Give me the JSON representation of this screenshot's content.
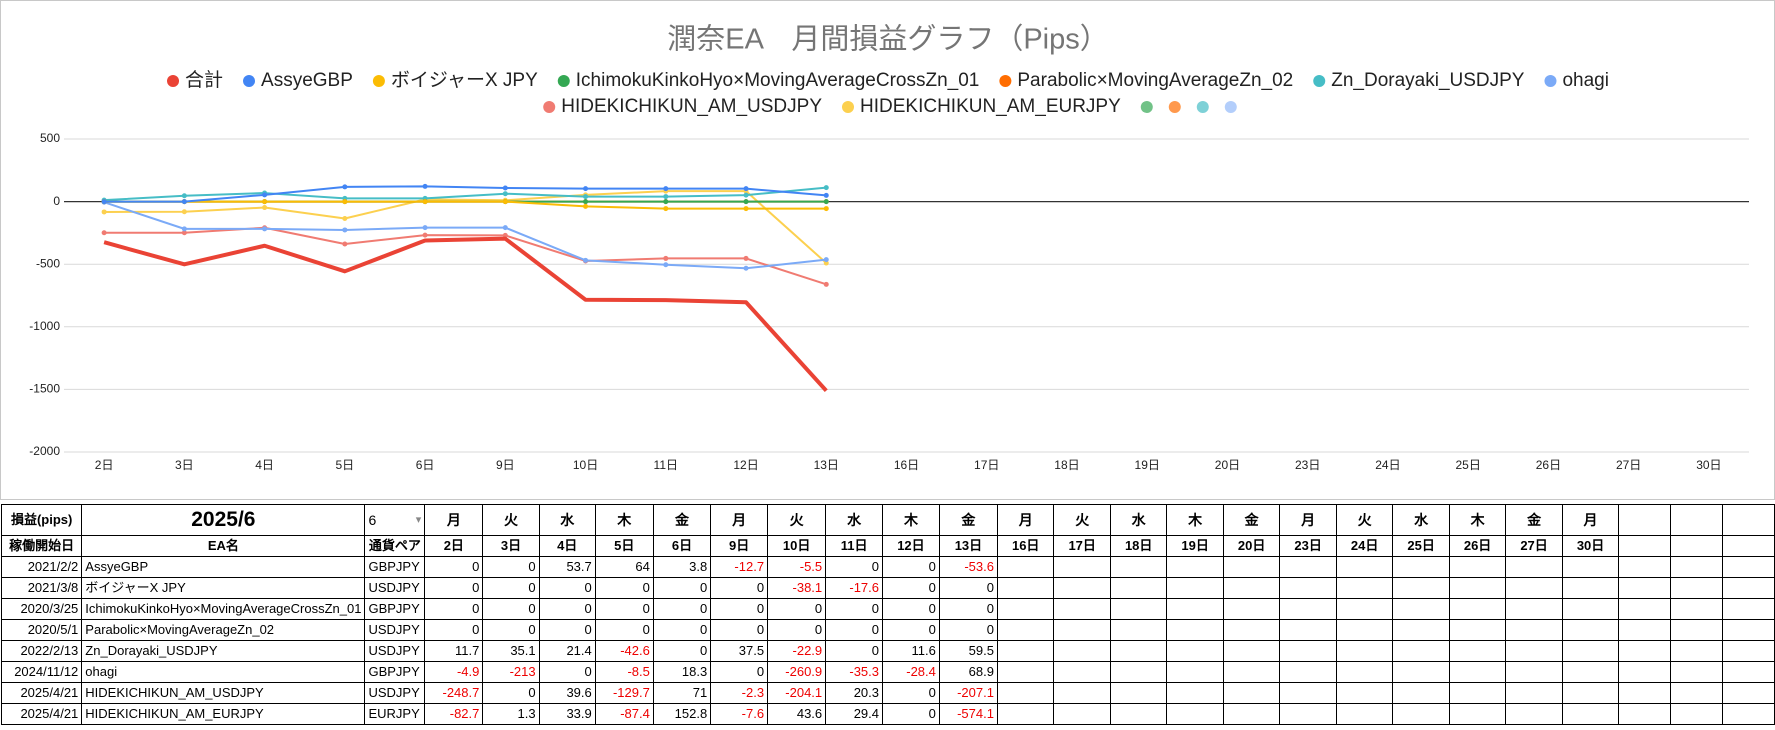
{
  "chart_data": {
    "type": "line",
    "title": "潤奈EA　月間損益グラフ（Pips）",
    "categories": [
      "2日",
      "3日",
      "4日",
      "5日",
      "6日",
      "9日",
      "10日",
      "11日",
      "12日",
      "13日",
      "16日",
      "17日",
      "18日",
      "19日",
      "20日",
      "23日",
      "24日",
      "25日",
      "26日",
      "27日",
      "30日"
    ],
    "ylim": [
      -2000,
      500
    ],
    "yticks": [
      500,
      0,
      -500,
      -1000,
      -1500,
      -2000
    ],
    "grid": true,
    "series": [
      {
        "name": "合計",
        "color": "#ea4335",
        "values": [
          -324.6,
          -501.2,
          -352.6,
          -556.8,
          -310.9,
          -296,
          -783.9,
          -787.1,
          -803.9,
          -1510.3,
          null,
          null,
          null,
          null,
          null,
          null,
          null,
          null,
          null,
          null,
          null
        ]
      },
      {
        "name": "AssyeGBP",
        "color": "#4285f4",
        "values": [
          0,
          0,
          53.7,
          117.7,
          121.5,
          108.8,
          103.3,
          103.3,
          103.3,
          49.7,
          null,
          null,
          null,
          null,
          null,
          null,
          null,
          null,
          null,
          null,
          null
        ]
      },
      {
        "name": "ボイジャーX JPY",
        "color": "#fbbc04",
        "values": [
          0,
          0,
          0,
          0,
          0,
          0,
          -38.1,
          -55.7,
          -55.7,
          -55.7,
          null,
          null,
          null,
          null,
          null,
          null,
          null,
          null,
          null,
          null,
          null
        ]
      },
      {
        "name": "IchimokuKinkoHyo×MovingAverageCrossZn_01",
        "color": "#34a853",
        "values": [
          0,
          0,
          0,
          0,
          0,
          0,
          0,
          0,
          0,
          0,
          null,
          null,
          null,
          null,
          null,
          null,
          null,
          null,
          null,
          null,
          null
        ]
      },
      {
        "name": "Parabolic×MovingAverageZn_02",
        "color": "#ff6d01",
        "values": [
          0,
          0,
          0,
          0,
          0,
          0,
          0,
          0,
          0,
          0,
          null,
          null,
          null,
          null,
          null,
          null,
          null,
          null,
          null,
          null,
          null
        ]
      },
      {
        "name": "Zn_Dorayaki_USDJPY",
        "color": "#46bdc6",
        "values": [
          11.7,
          46.8,
          68.2,
          25.6,
          25.6,
          63.1,
          40.2,
          40.2,
          51.8,
          111.3,
          null,
          null,
          null,
          null,
          null,
          null,
          null,
          null,
          null,
          null,
          null
        ]
      },
      {
        "name": "ohagi",
        "color": "#7baaf7",
        "values": [
          -4.9,
          -217.9,
          -217.9,
          -226.4,
          -208.1,
          -208.1,
          -469,
          -504.3,
          -532.7,
          -463.8,
          null,
          null,
          null,
          null,
          null,
          null,
          null,
          null,
          null,
          null,
          null
        ]
      },
      {
        "name": "HIDEKICHIKUN_AM_USDJPY",
        "color": "#f07b72",
        "values": [
          -248.7,
          -248.7,
          -209.1,
          -338.8,
          -267.8,
          -270.1,
          -474.2,
          -453.9,
          -453.9,
          -661,
          null,
          null,
          null,
          null,
          null,
          null,
          null,
          null,
          null,
          null,
          null
        ]
      },
      {
        "name": "HIDEKICHIKUN_AM_EURJPY",
        "color": "#fcd04f",
        "values": [
          -82.7,
          -81.4,
          -47.5,
          -134.9,
          17.9,
          10.3,
          53.9,
          83.3,
          83.3,
          -490.8,
          null,
          null,
          null,
          null,
          null,
          null,
          null,
          null,
          null,
          null,
          null
        ]
      }
    ]
  },
  "table": {
    "corner": "損益(pips)",
    "month": "2025/6",
    "month_select": "6",
    "weekdays": [
      "月",
      "火",
      "水",
      "木",
      "金",
      "月",
      "火",
      "水",
      "木",
      "金",
      "月",
      "火",
      "水",
      "木",
      "金",
      "月",
      "火",
      "水",
      "木",
      "金",
      "月"
    ],
    "header": [
      "稼働開始日",
      "EA名",
      "通貨ペア"
    ],
    "days": [
      "2日",
      "3日",
      "4日",
      "5日",
      "6日",
      "9日",
      "10日",
      "11日",
      "12日",
      "13日",
      "16日",
      "17日",
      "18日",
      "19日",
      "20日",
      "23日",
      "24日",
      "25日",
      "26日",
      "27日",
      "30日"
    ],
    "rows": [
      {
        "start": "2021/2/2",
        "name": "AssyeGBP",
        "pair": "GBPJPY",
        "values": [
          0,
          0,
          53.7,
          64,
          3.8,
          -12.7,
          -5.5,
          0,
          0,
          -53.6
        ]
      },
      {
        "start": "2021/3/8",
        "name": "ボイジャーX JPY",
        "pair": "USDJPY",
        "values": [
          0,
          0,
          0,
          0,
          0,
          0,
          -38.1,
          -17.6,
          0,
          0
        ]
      },
      {
        "start": "2020/3/25",
        "name": "IchimokuKinkoHyo×MovingAverageCrossZn_01",
        "pair": "GBPJPY",
        "values": [
          0,
          0,
          0,
          0,
          0,
          0,
          0,
          0,
          0,
          0
        ]
      },
      {
        "start": "2020/5/1",
        "name": "Parabolic×MovingAverageZn_02",
        "pair": "USDJPY",
        "values": [
          0,
          0,
          0,
          0,
          0,
          0,
          0,
          0,
          0,
          0
        ]
      },
      {
        "start": "2022/2/13",
        "name": "Zn_Dorayaki_USDJPY",
        "pair": "USDJPY",
        "values": [
          11.7,
          35.1,
          21.4,
          -42.6,
          0,
          37.5,
          -22.9,
          0,
          11.6,
          59.5
        ]
      },
      {
        "start": "2024/11/12",
        "name": "ohagi",
        "pair": "GBPJPY",
        "values": [
          -4.9,
          -213,
          0,
          -8.5,
          18.3,
          0,
          -260.9,
          -35.3,
          -28.4,
          68.9
        ]
      },
      {
        "start": "2025/4/21",
        "name": "HIDEKICHIKUN_AM_USDJPY",
        "pair": "USDJPY",
        "values": [
          -248.7,
          0,
          39.6,
          -129.7,
          71,
          -2.3,
          -204.1,
          20.3,
          0,
          -207.1
        ]
      },
      {
        "start": "2025/4/21",
        "name": "HIDEKICHIKUN_AM_EURJPY",
        "pair": "EURJPY",
        "values": [
          -82.7,
          1.3,
          33.9,
          -87.4,
          152.8,
          -7.6,
          43.6,
          29.4,
          0,
          -574.1
        ]
      }
    ]
  }
}
